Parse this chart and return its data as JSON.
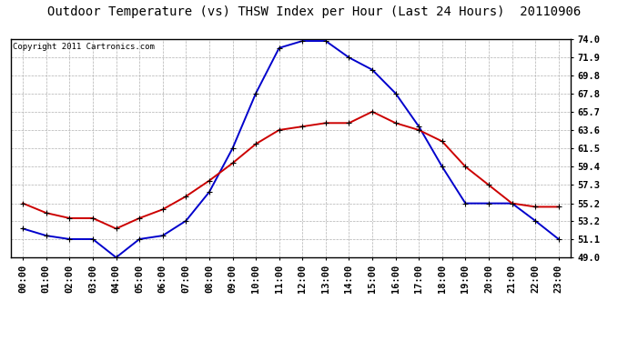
{
  "title": "Outdoor Temperature (vs) THSW Index per Hour (Last 24 Hours)  20110906",
  "copyright": "Copyright 2011 Cartronics.com",
  "x_labels": [
    "00:00",
    "01:00",
    "02:00",
    "03:00",
    "04:00",
    "05:00",
    "06:00",
    "07:00",
    "08:00",
    "09:00",
    "10:00",
    "11:00",
    "12:00",
    "13:00",
    "14:00",
    "15:00",
    "16:00",
    "17:00",
    "18:00",
    "19:00",
    "20:00",
    "21:00",
    "22:00",
    "23:00"
  ],
  "temp_data": [
    55.2,
    54.1,
    53.5,
    53.5,
    52.3,
    53.5,
    54.5,
    56.0,
    57.8,
    59.8,
    62.0,
    63.6,
    64.0,
    64.4,
    64.4,
    65.7,
    64.4,
    63.6,
    62.3,
    59.4,
    57.3,
    55.2,
    54.8,
    54.8
  ],
  "thsw_data": [
    52.3,
    51.5,
    51.1,
    51.1,
    49.0,
    51.1,
    51.5,
    53.2,
    56.5,
    61.5,
    67.8,
    73.0,
    73.8,
    73.8,
    71.9,
    70.5,
    67.8,
    64.0,
    59.4,
    55.2,
    55.2,
    55.2,
    53.2,
    51.1
  ],
  "temp_color": "#cc0000",
  "thsw_color": "#0000cc",
  "bg_color": "#ffffff",
  "plot_bg_color": "#ffffff",
  "grid_color": "#b0b0b0",
  "ymin": 49.0,
  "ymax": 74.0,
  "yticks": [
    49.0,
    51.1,
    53.2,
    55.2,
    57.3,
    59.4,
    61.5,
    63.6,
    65.7,
    67.8,
    69.8,
    71.9,
    74.0
  ],
  "title_fontsize": 10,
  "copyright_fontsize": 6.5,
  "tick_fontsize": 7.5,
  "linewidth": 1.4,
  "marker_size": 4
}
